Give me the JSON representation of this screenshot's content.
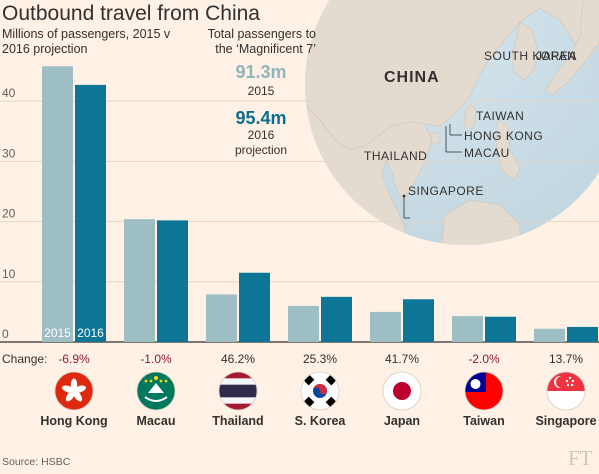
{
  "title": "Outbound travel from China",
  "subtitle": "Millions of passengers, 2015 v 2016 projection",
  "source": "Source: HSBC",
  "logo_text": "FT",
  "totals": {
    "label": "Total passengers to the ‘Magnificent 7’",
    "v2015": "91.3m",
    "v2015_label": "2015",
    "v2016": "95.4m",
    "v2016_label": "2016 projection"
  },
  "map_labels": {
    "china": "CHINA",
    "south_korea": "SOUTH KOREA",
    "japan": "JAPAN",
    "taiwan": "TAIWAN",
    "hong_kong": "HONG KONG",
    "macau": "MACAU",
    "thailand": "THAILAND",
    "singapore": "SINGAPORE"
  },
  "change_label": "Change:",
  "colors": {
    "background": "#fff1e5",
    "bar_2015": "#9dbfc4",
    "bar_2016": "#0d7696",
    "positive": "#33302e",
    "negative": "#8a1f3a",
    "value_2015": "#8fb6bc",
    "value_2016": "#0d6e8e"
  },
  "chart_data": {
    "type": "bar",
    "categories": [
      "Hong Kong",
      "Macau",
      "Thailand",
      "S. Korea",
      "Japan",
      "Taiwan",
      "Singapore"
    ],
    "series": [
      {
        "name": "2015",
        "values": [
          45.8,
          20.4,
          7.9,
          6.0,
          5.0,
          4.3,
          2.2
        ]
      },
      {
        "name": "2016",
        "values": [
          42.7,
          20.2,
          11.5,
          7.5,
          7.1,
          4.2,
          2.5
        ]
      }
    ],
    "changes": [
      "-6.9%",
      "-1.0%",
      "46.2%",
      "25.3%",
      "41.7%",
      "-2.0%",
      "13.7%"
    ],
    "flags": [
      "hong-kong-flag",
      "macau-flag",
      "thailand-flag",
      "south-korea-flag",
      "japan-flag",
      "taiwan-flag",
      "singapore-flag"
    ],
    "yticks": [
      0,
      10,
      20,
      30,
      40
    ],
    "ylim": [
      0,
      48
    ],
    "grid": true
  }
}
